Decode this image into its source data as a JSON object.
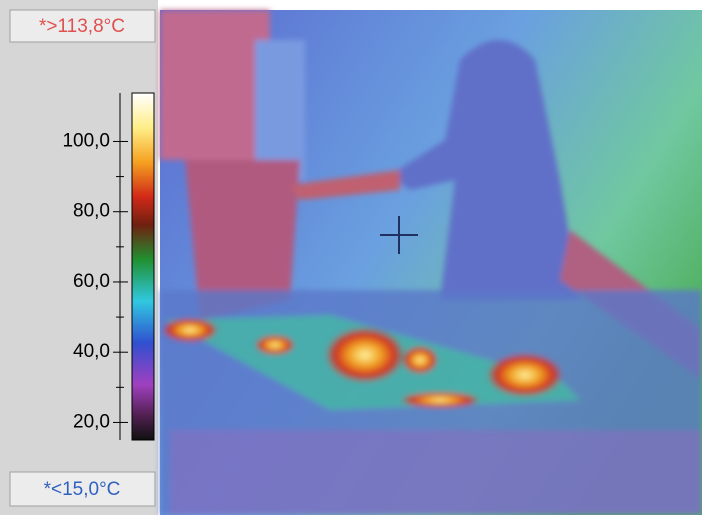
{
  "scale": {
    "max_label": "*>113,8°C",
    "min_label": "*<15,0°C",
    "lim": [
      15,
      113.8
    ],
    "ticks": [
      {
        "value": 20,
        "label": "20,0"
      },
      {
        "value": 40,
        "label": "40,0"
      },
      {
        "value": 60,
        "label": "60,0"
      },
      {
        "value": 80,
        "label": "80,0"
      },
      {
        "value": 100,
        "label": "100,0"
      }
    ]
  }
}
